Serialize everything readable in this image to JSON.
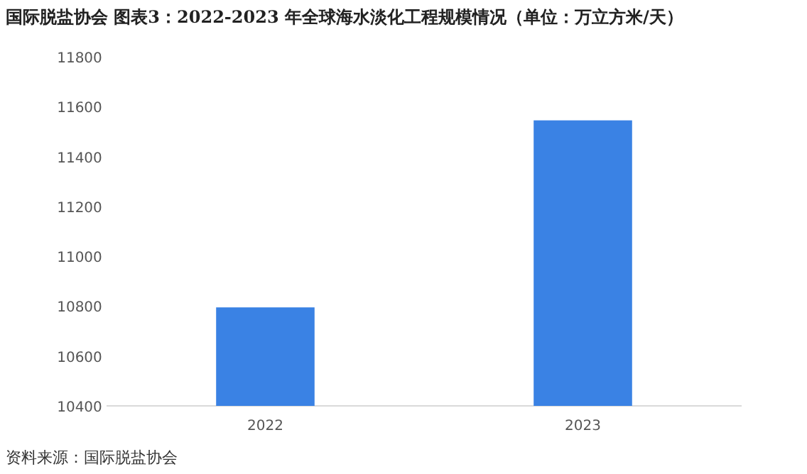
{
  "chart_data": {
    "type": "bar",
    "title": "国际脱盐协会 图表3：2022-2023 年全球海水淡化工程规模情况（单位：万立方米/天）",
    "categories": [
      "2022",
      "2023"
    ],
    "values": [
      10795,
      11545
    ],
    "color": "#3a82e4",
    "ylim": [
      10400,
      11800
    ],
    "yticks": [
      10400,
      10600,
      10800,
      11000,
      11200,
      11400,
      11600,
      11800
    ],
    "grid": false,
    "annotations": [
      "资料来源：国际脱盐协会"
    ]
  }
}
